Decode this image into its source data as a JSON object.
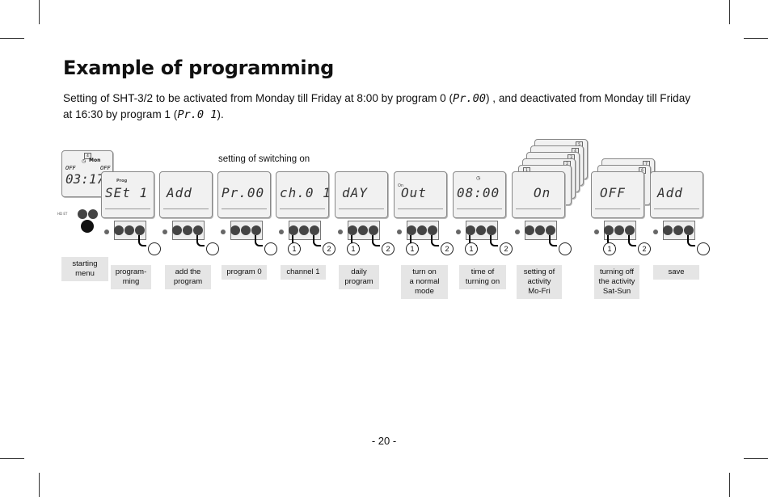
{
  "page": {
    "title": "Example of programming",
    "intro_before_code1": "Setting of SHT-3/2 to be activated from Monday till Friday at 8:00 by program 0 (",
    "code1": "Pr.00",
    "intro_between": ") , and deactivated from Monday till Friday at 16:30 by program 1 (",
    "code2": "Pr.0 1",
    "intro_end": ").",
    "switching_title": "setting of switching on",
    "page_number": "- 20 -"
  },
  "start_display": {
    "day_marker": "4",
    "day": "Mon",
    "left_state": "OFF",
    "right_state": "OFF",
    "time": "03:17",
    "side_label": "HD ET"
  },
  "steps": [
    {
      "display": "SEt 1",
      "tag": "Prog",
      "label": "program-\nming"
    },
    {
      "display": "Add",
      "label": "add the\nprogram"
    },
    {
      "display": "Pr.00",
      "label": "program 0"
    },
    {
      "display": "ch.0 1",
      "label": "channel 1"
    },
    {
      "display": "dAY",
      "label": "daily\nprogram"
    },
    {
      "display": "Out",
      "tag": "On",
      "label": "turn on\na normal\nmode"
    },
    {
      "display": "08:00",
      "label": "time of\nturning on"
    },
    {
      "display": "On",
      "label": "setting of\nactivity\nMo-Fri",
      "stack": [
        "1",
        "2",
        "3",
        "4",
        "5"
      ]
    },
    {
      "display": "OFF",
      "label": "turning off\nthe activity\nSat-Sun",
      "stack": [
        "6",
        "7"
      ]
    },
    {
      "display": "Add",
      "label": "save"
    }
  ],
  "start_label": "starting\nmenu",
  "circle_marks": {
    "one": "1",
    "two": "2"
  }
}
